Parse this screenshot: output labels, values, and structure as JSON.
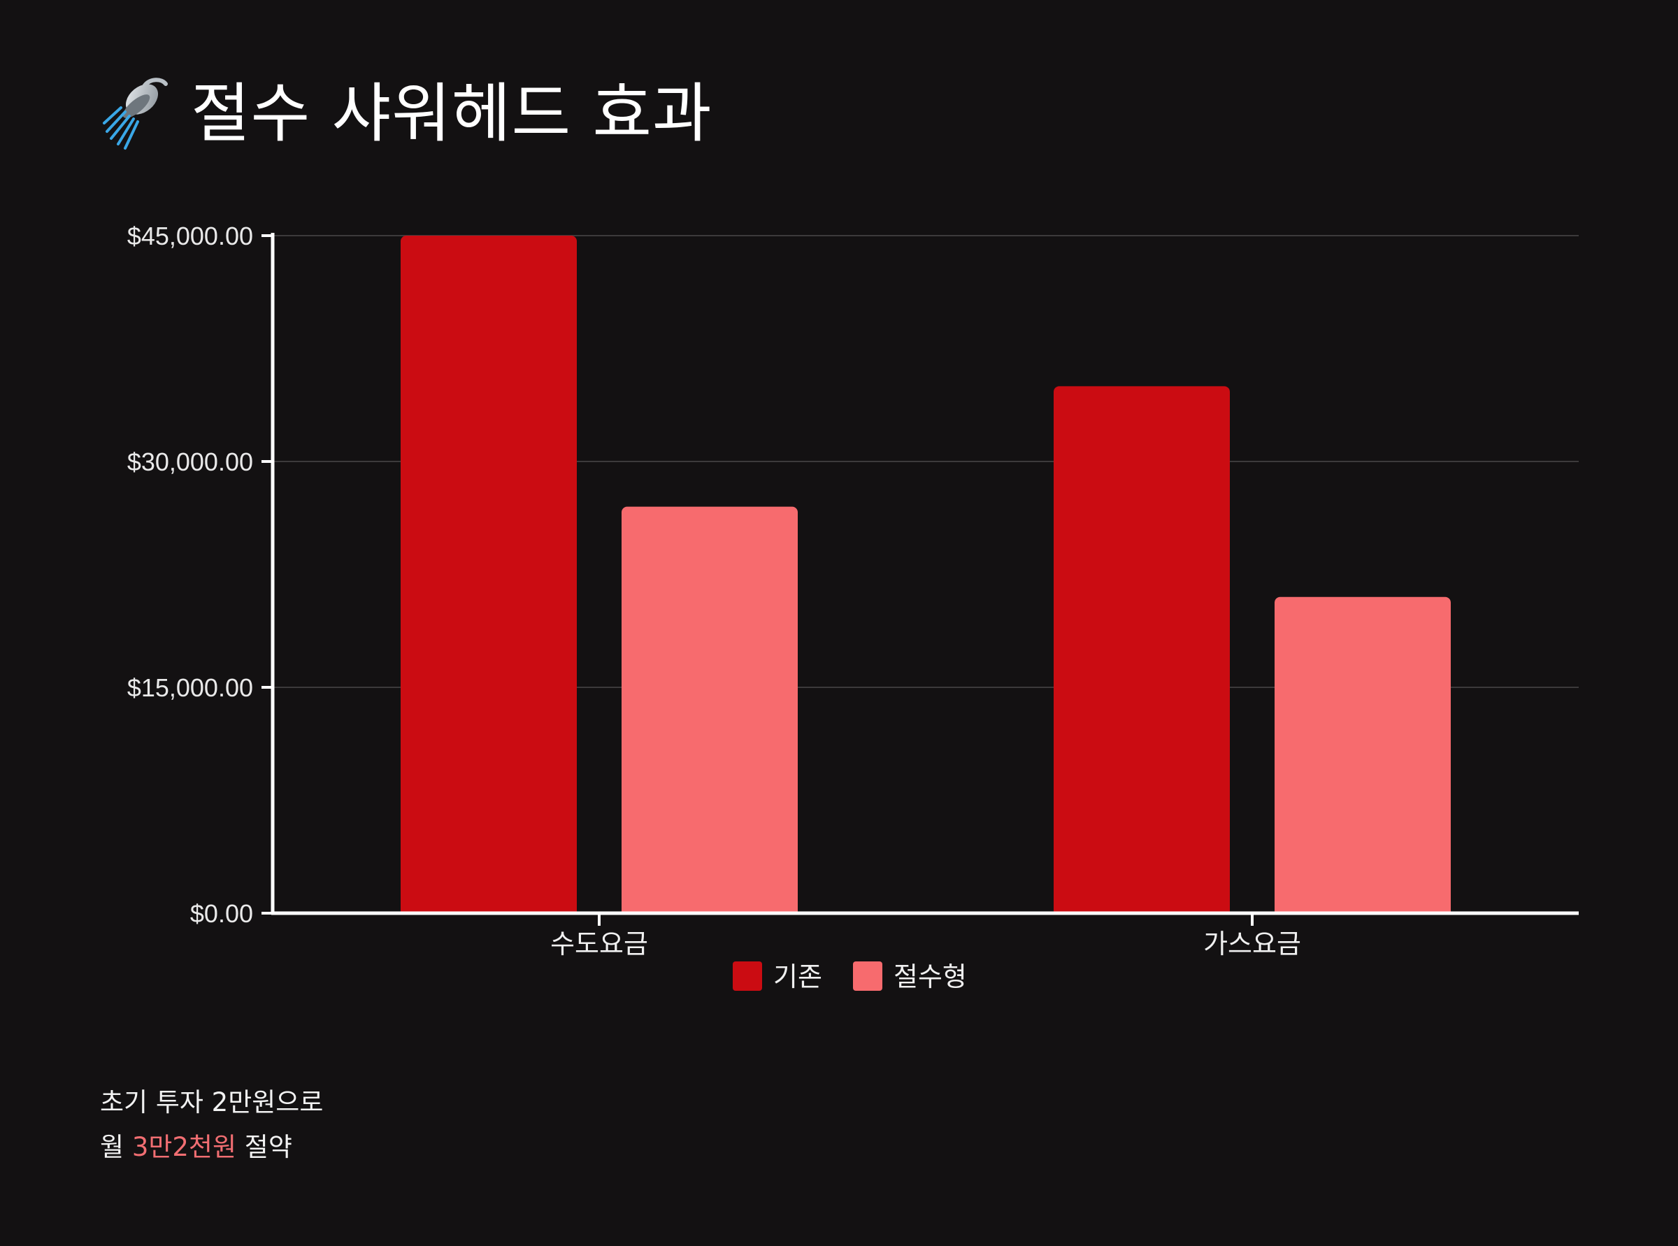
{
  "title": "절수 샤워헤드 효과",
  "title_icon": "shower-icon",
  "chart_data": {
    "type": "bar",
    "categories": [
      "수도요금",
      "가스요금"
    ],
    "series": [
      {
        "name": "기존",
        "values": [
          45000,
          35000
        ],
        "color": "#cb0c12"
      },
      {
        "name": "절수형",
        "values": [
          27000,
          21000
        ],
        "color": "#f76b6e"
      }
    ],
    "ylim": [
      0,
      45000
    ],
    "yticks": [
      0,
      15000,
      30000,
      45000
    ],
    "ytick_labels": [
      "$0.00",
      "$15,000.00",
      "$30,000.00",
      "$45,000.00"
    ],
    "grid": true,
    "legend_position": "bottom",
    "xlabel": "",
    "ylabel": ""
  },
  "note": {
    "line1": "초기 투자 2만원으로",
    "line2_prefix": "월 ",
    "line2_highlight": "3만2천원",
    "line2_suffix": " 절약",
    "highlight_color": "#f16e72"
  }
}
